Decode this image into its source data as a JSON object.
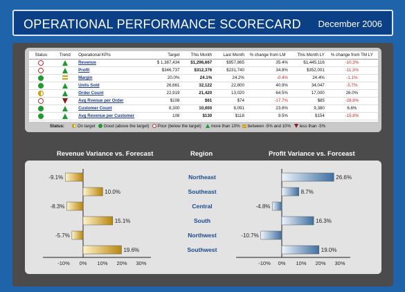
{
  "header": {
    "title": "OPERATIONAL PERFORMANCE SCORECARD",
    "date": "December 2006"
  },
  "table": {
    "columns": [
      "Status",
      "Trend",
      "Operational KPIs",
      "Target",
      "This Month",
      "Last Month",
      "% change from LM",
      "This Month LY",
      "% change from TM LY"
    ],
    "rows": [
      {
        "status": "poor",
        "trend": "up",
        "kpi": "Revenue",
        "target": "$ 1,387,434",
        "month": "$1,296,667",
        "last": "$957,865",
        "chg_lm": "35.4%",
        "ly": "$1,445,116",
        "chg_ly": "-10.3%"
      },
      {
        "status": "poor",
        "trend": "up",
        "kpi": "Profit",
        "target": "$346,737",
        "month": "$312,376",
        "last": "$231,740",
        "chg_lm": "34.8%",
        "ly": "$352,001",
        "chg_ly": "-11.3%"
      },
      {
        "status": "good",
        "trend": "between",
        "kpi": "Margin",
        "target": "20.0%",
        "month": "24.1%",
        "last": "24.2%",
        "chg_lm": "-0.4%",
        "ly": "24.4%",
        "chg_ly": "-1.1%"
      },
      {
        "status": "good",
        "trend": "up",
        "kpi": "Units Sold",
        "target": "26,661",
        "month": "32,122",
        "last": "22,800",
        "chg_lm": "40.9%",
        "ly": "34,047",
        "chg_ly": "-5.7%"
      },
      {
        "status": "ontarget",
        "trend": "up",
        "kpi": "Order Count",
        "target": "22,919",
        "month": "21,420",
        "last": "13,020",
        "chg_lm": "64.5%",
        "ly": "17,000",
        "chg_ly": "26.0%"
      },
      {
        "status": "poor",
        "trend": "down",
        "kpi": "Avg Rvenue per Order",
        "target": "$108",
        "month": "$61",
        "last": "$74",
        "chg_lm": "-17.7%",
        "ly": "$85",
        "chg_ly": "-28.8%"
      },
      {
        "status": "good",
        "trend": "up",
        "kpi": "Customer Count",
        "target": "8,300",
        "month": "10,000",
        "last": "8,091",
        "chg_lm": "23.6%",
        "ly": "9,380",
        "chg_ly": "6.6%"
      },
      {
        "status": "good",
        "trend": "up",
        "kpi": "Avg Revenue per Customer",
        "target": "108",
        "month": "$130",
        "last": "$118",
        "chg_lm": "9.5%",
        "ly": "$154",
        "chg_ly": "-15.8%"
      }
    ]
  },
  "legend": {
    "label": "Status:",
    "on_target": "On target",
    "good": "Good (above the target)",
    "poor": "Poor (below the target)",
    "more": "more than 10%",
    "between": "between -5% and 10%",
    "less": "less than -5%"
  },
  "charts": {
    "revenue_title": "Revenue Variance vs. Forecast",
    "region_title": "Region",
    "profit_title": "Profit Variance vs. Forceast",
    "ticks": [
      "-10%",
      "0%",
      "10%",
      "20%",
      "30%"
    ]
  },
  "chart_data": [
    {
      "type": "bar",
      "title": "Revenue Variance vs. Forecast",
      "categories": [
        "Northeast",
        "Southeast",
        "Central",
        "South",
        "Northwest",
        "Southwest"
      ],
      "values": [
        -9.1,
        10.0,
        -8.3,
        15.1,
        -5.7,
        19.6
      ],
      "labels": [
        "-9.1%",
        "10.0%",
        "-8.3%",
        "15.1%",
        "-5.7%",
        "19.6%"
      ],
      "xlim": [
        -10,
        30
      ],
      "color": "#c9a227"
    },
    {
      "type": "bar",
      "title": "Profit Variance vs. Forceast",
      "categories": [
        "Northeast",
        "Southeast",
        "Central",
        "South",
        "Northwest",
        "Southwest"
      ],
      "values": [
        26.6,
        8.7,
        -4.8,
        16.3,
        -10.7,
        19.0
      ],
      "labels": [
        "26.6%",
        "8.7%",
        "-4.8%",
        "16.3%",
        "-10.7%",
        "19.0%"
      ],
      "xlim": [
        -10,
        30
      ],
      "color": "#7ea6cf"
    }
  ]
}
